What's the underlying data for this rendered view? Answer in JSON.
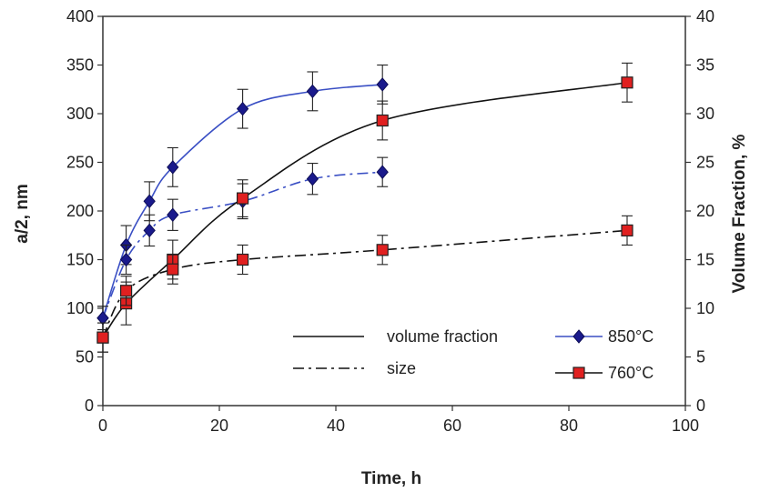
{
  "chart_data": {
    "type": "line",
    "xlabel": "Time, h",
    "ylabel_left": "a/2, nm",
    "ylabel_right": "Volume Fraction, %",
    "xlim": [
      0,
      100
    ],
    "xticks": [
      0,
      20,
      40,
      60,
      80,
      100
    ],
    "ylim_left": [
      0,
      400
    ],
    "yticks_left": [
      0,
      50,
      100,
      150,
      200,
      250,
      300,
      350,
      400
    ],
    "ylim_right": [
      0,
      40
    ],
    "yticks_right": [
      0,
      5,
      10,
      15,
      20,
      25,
      30,
      35,
      40
    ],
    "grid": false,
    "legend": {
      "line_styles": [
        {
          "label": "volume fraction",
          "dash": "solid"
        },
        {
          "label": "size",
          "dash": "dashdot"
        }
      ],
      "markers": [
        {
          "label": "850°C",
          "marker": "diamond",
          "color": "#1a1a8c"
        },
        {
          "label": "760°C",
          "marker": "square",
          "color": "#e02020"
        }
      ]
    },
    "series": [
      {
        "temperature": "850°C",
        "quantity": "volume fraction",
        "axis": "right",
        "color": "#3a4fc4",
        "marker": "diamond",
        "dash": "solid",
        "x": [
          0,
          4,
          8,
          12,
          24,
          36,
          48
        ],
        "y": [
          9.0,
          16.5,
          21.0,
          24.5,
          30.5,
          32.3,
          33.0
        ],
        "err": [
          1.2,
          2.0,
          2.0,
          2.0,
          2.0,
          2.0,
          2.0
        ]
      },
      {
        "temperature": "850°C",
        "quantity": "size",
        "axis": "left",
        "color": "#3a4fc4",
        "marker": "diamond",
        "dash": "dashdot",
        "x": [
          0,
          4,
          8,
          12,
          24,
          36,
          48
        ],
        "y": [
          90,
          150,
          180,
          196,
          210,
          233,
          240
        ],
        "err": [
          12,
          15,
          16,
          16,
          18,
          16,
          15
        ]
      },
      {
        "temperature": "760°C",
        "quantity": "volume fraction",
        "axis": "right",
        "color": "#111111",
        "marker": "square",
        "dash": "solid",
        "x": [
          0,
          4,
          12,
          24,
          48,
          90
        ],
        "y": [
          7.0,
          10.5,
          15.0,
          21.3,
          29.3,
          33.2
        ],
        "err": [
          1.5,
          2.2,
          2.0,
          1.9,
          2.0,
          2.0
        ]
      },
      {
        "temperature": "760°C",
        "quantity": "size",
        "axis": "left",
        "color": "#111111",
        "marker": "square",
        "dash": "dashdot",
        "x": [
          0,
          4,
          12,
          24,
          48,
          90
        ],
        "y": [
          70,
          118,
          140,
          150,
          160,
          180
        ],
        "err": [
          15,
          15,
          15,
          15,
          15,
          15
        ]
      }
    ]
  }
}
